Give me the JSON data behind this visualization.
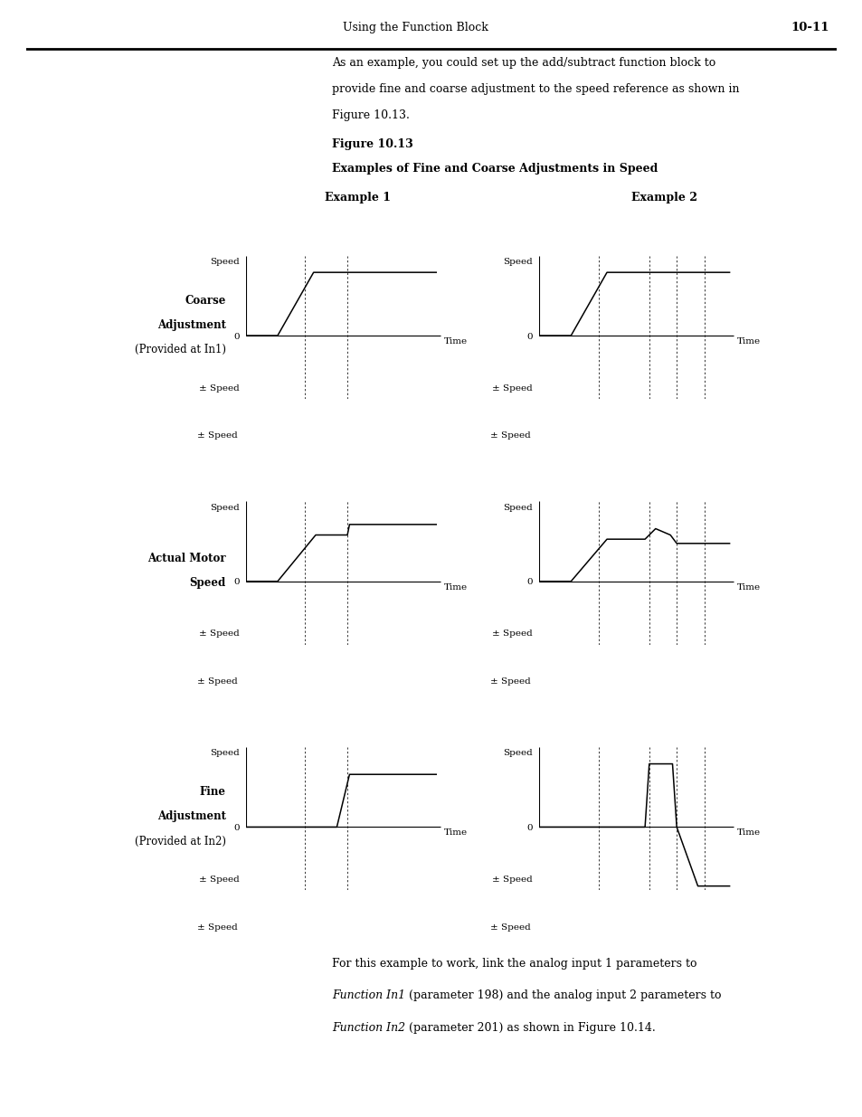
{
  "page_header_left": "Using the Function Block",
  "page_header_right": "10-11",
  "intro_line1": "As an example, you could set up the add/subtract function block to",
  "intro_line2": "provide fine and coarse adjustment to the speed reference as shown in",
  "intro_line3": "Figure 10.13.",
  "fig_title1": "Figure 10.13",
  "fig_title2": "Examples of Fine and Coarse Adjustments in Speed",
  "ex1_label": "Example 1",
  "ex2_label": "Example 2",
  "row0_b1": "Coarse",
  "row0_b2": "Adjustment",
  "row0_b3": "(Provided at In1)",
  "row1_b1": "Actual Motor",
  "row1_b2": "Speed",
  "row1_b3": "",
  "row2_b1": "Fine",
  "row2_b2": "Adjustment",
  "row2_b3": "(Provided at In2)",
  "foot1": "For this example to work, link the analog input 1 parameters to",
  "foot2a": "Function In1",
  "foot2b": " (parameter 198) and the analog input 2 parameters to",
  "foot3a": "Function In2",
  "foot3b": " (parameter 201) as shown in Figure 10.14.",
  "bg": "#ffffff",
  "fg": "#000000"
}
